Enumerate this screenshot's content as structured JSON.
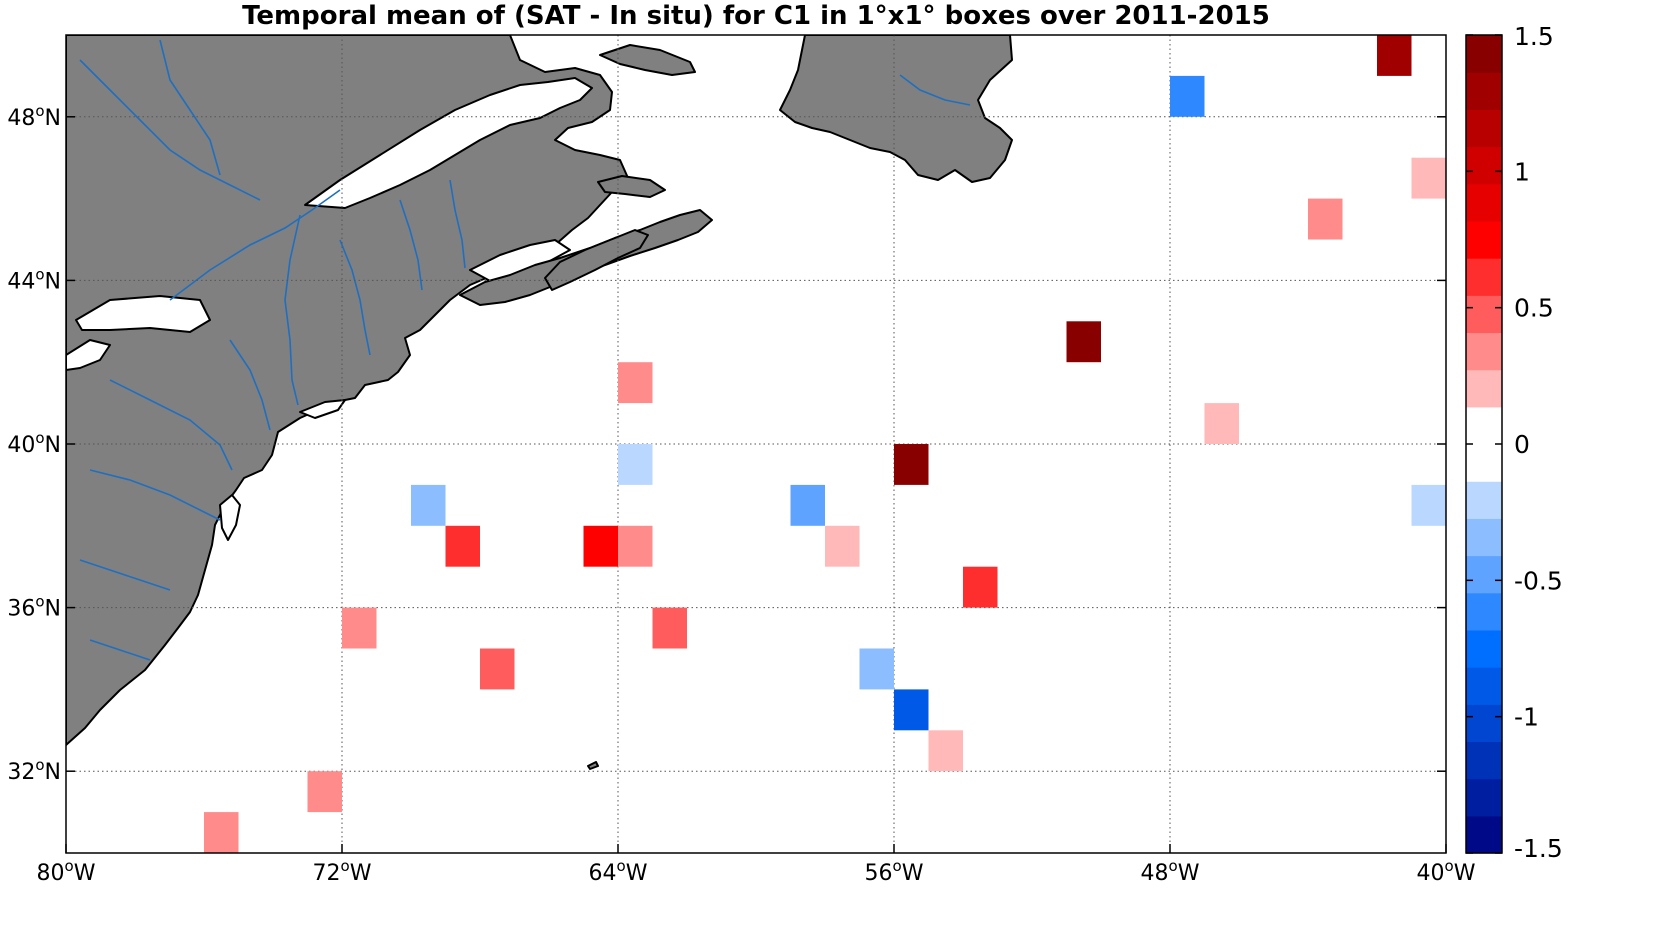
{
  "title": "Temporal mean of (SAT - In situ) for C1 in 1°x1° boxes over 2011-2015",
  "x_ticks": [
    {
      "lon": -80,
      "num": "80",
      "sup": "o",
      "hem": "W"
    },
    {
      "lon": -72,
      "num": "72",
      "sup": "o",
      "hem": "W"
    },
    {
      "lon": -64,
      "num": "64",
      "sup": "o",
      "hem": "W"
    },
    {
      "lon": -56,
      "num": "56",
      "sup": "o",
      "hem": "W"
    },
    {
      "lon": -48,
      "num": "48",
      "sup": "o",
      "hem": "W"
    },
    {
      "lon": -40,
      "num": "40",
      "sup": "o",
      "hem": "W"
    }
  ],
  "y_ticks": [
    {
      "lat": 32,
      "num": "32",
      "sup": "o",
      "hem": "N"
    },
    {
      "lat": 36,
      "num": "36",
      "sup": "o",
      "hem": "N"
    },
    {
      "lat": 40,
      "num": "40",
      "sup": "o",
      "hem": "N"
    },
    {
      "lat": 44,
      "num": "44",
      "sup": "o",
      "hem": "N"
    },
    {
      "lat": 48,
      "num": "48",
      "sup": "o",
      "hem": "N"
    }
  ],
  "colorbar": {
    "ticks": [
      "1.5",
      "1",
      "0.5",
      "0",
      "-0.5",
      "-1",
      "-1.5"
    ],
    "range": [
      -1.5,
      1.5
    ],
    "levels": 22
  },
  "colors": {
    "land": "#808080",
    "river": "#1f6fc0",
    "background": "#ffffff"
  },
  "chart_data": {
    "type": "heatmap",
    "title": "Temporal mean of (SAT - In situ) for C1 in 1°x1° boxes over 2011-2015",
    "xlabel": "",
    "ylabel": "",
    "xlim": [
      -80,
      -40
    ],
    "ylim": [
      30,
      50
    ],
    "clim": [
      -1.5,
      1.5
    ],
    "cells": [
      {
        "lon": -42,
        "lat": 49,
        "value": 1.25
      },
      {
        "lon": -48,
        "lat": 48,
        "value": -0.6
      },
      {
        "lon": -41,
        "lat": 46,
        "value": 0.2
      },
      {
        "lon": -44,
        "lat": 45,
        "value": 0.3
      },
      {
        "lon": -51,
        "lat": 42,
        "value": 1.5
      },
      {
        "lon": -64,
        "lat": 41,
        "value": 0.4
      },
      {
        "lon": -47,
        "lat": 40,
        "value": 0.2
      },
      {
        "lon": -64,
        "lat": 39,
        "value": -0.15
      },
      {
        "lon": -56,
        "lat": 39,
        "value": 1.45
      },
      {
        "lon": -70,
        "lat": 38,
        "value": -0.3
      },
      {
        "lon": -59,
        "lat": 38,
        "value": -0.5
      },
      {
        "lon": -41,
        "lat": 38,
        "value": -0.2
      },
      {
        "lon": -69,
        "lat": 37,
        "value": 0.55
      },
      {
        "lon": -65,
        "lat": 37,
        "value": 0.7
      },
      {
        "lon": -64,
        "lat": 37,
        "value": 0.4
      },
      {
        "lon": -58,
        "lat": 37,
        "value": 0.15
      },
      {
        "lon": -54,
        "lat": 36,
        "value": 0.55
      },
      {
        "lon": -72,
        "lat": 35,
        "value": 0.3
      },
      {
        "lon": -63,
        "lat": 35,
        "value": 0.45
      },
      {
        "lon": -68,
        "lat": 34,
        "value": 0.45
      },
      {
        "lon": -57,
        "lat": 34,
        "value": -0.3
      },
      {
        "lon": -56,
        "lat": 33,
        "value": -0.85
      },
      {
        "lon": -55,
        "lat": 32,
        "value": 0.15
      },
      {
        "lon": -73,
        "lat": 31,
        "value": 0.3
      },
      {
        "lon": -76,
        "lat": 30,
        "value": 0.3
      }
    ]
  }
}
